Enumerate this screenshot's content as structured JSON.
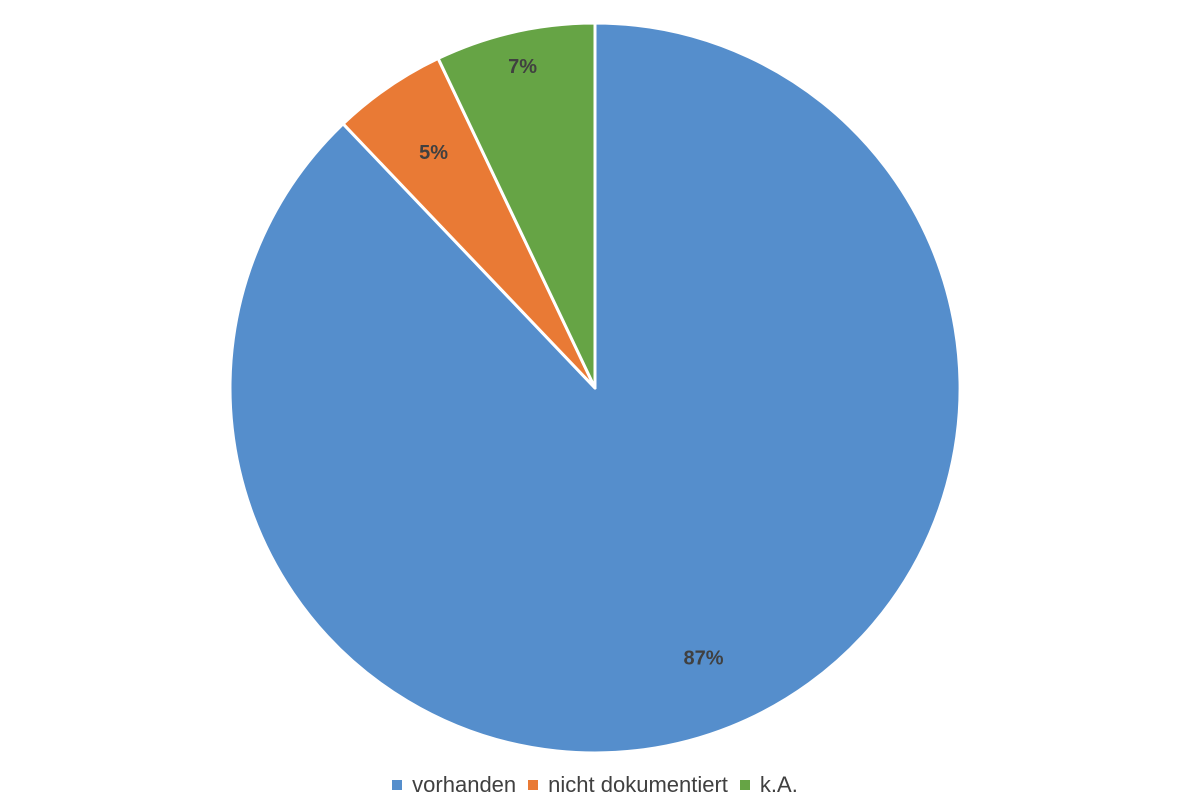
{
  "chart_data": {
    "type": "pie",
    "title": "",
    "categories": [
      "vorhanden",
      "nicht dokumentiert",
      "k.A."
    ],
    "values": [
      87,
      5,
      7
    ],
    "data_labels": [
      "87%",
      "5%",
      "7%"
    ],
    "colors": [
      "#558ecc",
      "#e97a35",
      "#66a445"
    ],
    "start_angle_deg": 0,
    "direction": "clockwise",
    "legend_position": "bottom"
  },
  "legend": {
    "items": [
      {
        "label": "vorhanden",
        "color": "#558ecc"
      },
      {
        "label": "nicht dokumentiert",
        "color": "#e97a35"
      },
      {
        "label": "k.A.",
        "color": "#66a445"
      }
    ]
  }
}
